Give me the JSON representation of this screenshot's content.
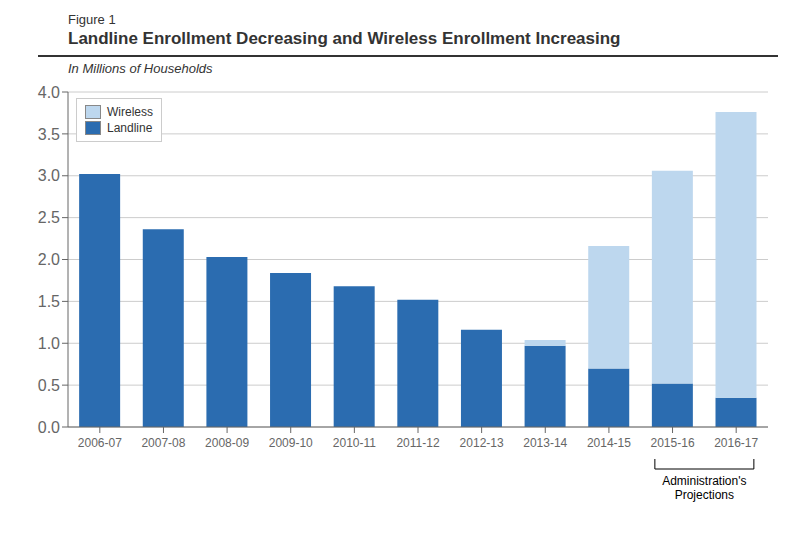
{
  "chart_data": {
    "type": "bar",
    "stacked": true,
    "figure_label": "Figure 1",
    "title": "Landline Enrollment Decreasing and Wireless Enrollment Increasing",
    "subtitle": "In Millions of Households",
    "categories": [
      "2006-07",
      "2007-08",
      "2008-09",
      "2009-10",
      "2010-11",
      "2011-12",
      "2012-13",
      "2013-14",
      "2014-15",
      "2015-16",
      "2016-17"
    ],
    "series": [
      {
        "name": "Landline",
        "color": "#2B6CB0",
        "values": [
          3.02,
          2.36,
          2.03,
          1.84,
          1.68,
          1.52,
          1.16,
          0.97,
          0.7,
          0.52,
          0.35
        ]
      },
      {
        "name": "Wireless",
        "color": "#BDD7EE",
        "values": [
          0.0,
          0.0,
          0.0,
          0.0,
          0.0,
          0.0,
          0.0,
          0.07,
          1.46,
          2.54,
          3.41
        ]
      }
    ],
    "ylim": [
      0,
      4.0
    ],
    "yticks": [
      {
        "value": 0.0,
        "label": "0.0"
      },
      0.5,
      {
        "value": 1.0,
        "label": "1.0"
      },
      1.5,
      {
        "value": 2.0,
        "label": "2.0"
      },
      2.5,
      {
        "value": 3.0,
        "label": "3.0"
      },
      3.5,
      {
        "value": 4.0,
        "label": "4.0"
      }
    ],
    "grid": true,
    "legend": "upper left",
    "annotations": [
      {
        "text": "Administration's\nProjections",
        "from": "2015-16",
        "to": "2016-17"
      }
    ]
  }
}
